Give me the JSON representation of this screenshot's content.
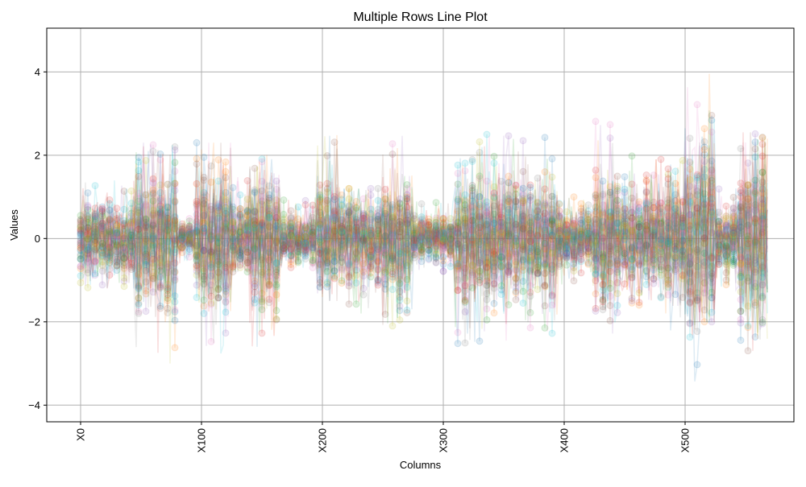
{
  "chart_data": {
    "type": "line",
    "title": "Multiple Rows Line Plot",
    "xlabel": "Columns",
    "ylabel": "Values",
    "x_categories_count": 570,
    "x_tick_labels": [
      "X0",
      "X100",
      "X200",
      "X300",
      "X400",
      "X500"
    ],
    "x_tick_positions": [
      0,
      100,
      200,
      300,
      400,
      500
    ],
    "xlim": [
      -28,
      590
    ],
    "y_ticks": [
      -4,
      -2,
      0,
      2,
      4
    ],
    "ylim": [
      -4.4,
      5.05
    ],
    "grid": true,
    "legend": "none",
    "marker": "circle",
    "series_alpha": 0.15,
    "colors": [
      "#1f77b4",
      "#ff7f0e",
      "#2ca02c",
      "#d62728",
      "#9467bd",
      "#8c564b",
      "#e377c2",
      "#7f7f7f",
      "#bcbd22",
      "#17becf"
    ],
    "variance_profile": [
      {
        "x_range": [
          0,
          8
        ],
        "y_range": [
          -1.2,
          1.8
        ]
      },
      {
        "x_range": [
          8,
          45
        ],
        "y_range": [
          -1.2,
          1.5
        ]
      },
      {
        "x_range": [
          45,
          60
        ],
        "y_range": [
          -2.95,
          2.3
        ]
      },
      {
        "x_range": [
          60,
          80
        ],
        "y_range": [
          -3.0,
          2.25
        ]
      },
      {
        "x_range": [
          80,
          95
        ],
        "y_range": [
          -0.6,
          0.6
        ]
      },
      {
        "x_range": [
          95,
          125
        ],
        "y_range": [
          -2.9,
          2.3
        ]
      },
      {
        "x_range": [
          125,
          140
        ],
        "y_range": [
          -0.8,
          1.5
        ]
      },
      {
        "x_range": [
          140,
          165
        ],
        "y_range": [
          -2.6,
          2.0
        ]
      },
      {
        "x_range": [
          165,
          195
        ],
        "y_range": [
          -0.7,
          1.0
        ]
      },
      {
        "x_range": [
          195,
          215
        ],
        "y_range": [
          -1.5,
          2.5
        ]
      },
      {
        "x_range": [
          215,
          250
        ],
        "y_range": [
          -1.8,
          1.2
        ]
      },
      {
        "x_range": [
          250,
          275
        ],
        "y_range": [
          -2.3,
          2.5
        ]
      },
      {
        "x_range": [
          275,
          310
        ],
        "y_range": [
          -0.8,
          0.9
        ]
      },
      {
        "x_range": [
          310,
          335
        ],
        "y_range": [
          -2.7,
          2.55
        ]
      },
      {
        "x_range": [
          335,
          360
        ],
        "y_range": [
          -2.6,
          2.5
        ]
      },
      {
        "x_range": [
          360,
          395
        ],
        "y_range": [
          -2.3,
          2.45
        ]
      },
      {
        "x_range": [
          395,
          425
        ],
        "y_range": [
          -1.2,
          1.0
        ]
      },
      {
        "x_range": [
          425,
          445
        ],
        "y_range": [
          -2.3,
          2.85
        ]
      },
      {
        "x_range": [
          445,
          475
        ],
        "y_range": [
          -1.6,
          2.0
        ]
      },
      {
        "x_range": [
          475,
          500
        ],
        "y_range": [
          -2.4,
          1.9
        ]
      },
      {
        "x_range": [
          500,
          512
        ],
        "y_range": [
          -3.95,
          3.8
        ]
      },
      {
        "x_range": [
          512,
          525
        ],
        "y_range": [
          -2.0,
          4.6
        ]
      },
      {
        "x_range": [
          525,
          545
        ],
        "y_range": [
          -1.3,
          1.2
        ]
      },
      {
        "x_range": [
          545,
          570
        ],
        "y_range": [
          -3.6,
          2.55
        ]
      }
    ]
  }
}
